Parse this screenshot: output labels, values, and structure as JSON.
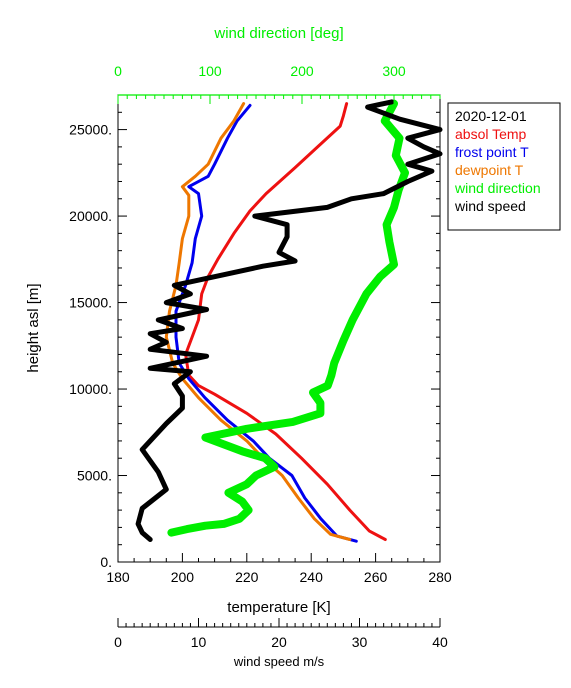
{
  "chart_data": {
    "type": "line",
    "title": "",
    "date_label": "2020-12-01",
    "y_axis": {
      "label": "height asl [m]",
      "range": [
        0,
        27000
      ],
      "ticks": [
        "0.",
        "5000.",
        "10000.",
        "15000.",
        "20000.",
        "25000."
      ],
      "tick_values": [
        0,
        5000,
        10000,
        15000,
        20000,
        25000
      ],
      "minor_step": 1000
    },
    "x_axis_temperature": {
      "label": "temperature [K]",
      "range": [
        180,
        280
      ],
      "ticks": [
        "180",
        "200",
        "220",
        "240",
        "260",
        "280"
      ],
      "tick_values": [
        180,
        200,
        220,
        240,
        260,
        280
      ],
      "minor_step": 5
    },
    "x_axis_wind_direction": {
      "label": "wind direction [deg]",
      "range": [
        0,
        350
      ],
      "ticks": [
        "0",
        "100",
        "200",
        "300"
      ],
      "tick_values": [
        0,
        100,
        200,
        300
      ],
      "minor_step": 10,
      "color": "#00ee00"
    },
    "x_axis_wind_speed": {
      "label": "wind speed  m/s",
      "range": [
        0,
        40
      ],
      "ticks": [
        "0",
        "10",
        "20",
        "30",
        "40"
      ],
      "tick_values": [
        0,
        10,
        20,
        30,
        40
      ],
      "minor_step": 1
    },
    "legend_position": "outside-right-top",
    "series": [
      {
        "name": "absol Temp",
        "axis": "temperature",
        "color": "#ee1111",
        "points": [
          [
            263,
            1300
          ],
          [
            258,
            1800
          ],
          [
            252,
            3000
          ],
          [
            245,
            4500
          ],
          [
            237,
            6000
          ],
          [
            229,
            7400
          ],
          [
            220,
            8600
          ],
          [
            210,
            9700
          ],
          [
            205,
            10200
          ],
          [
            202,
            10800
          ],
          [
            201,
            12000
          ],
          [
            203,
            13000
          ],
          [
            205,
            14000
          ],
          [
            206,
            15500
          ],
          [
            208,
            16500
          ],
          [
            211,
            17500
          ],
          [
            216,
            19000
          ],
          [
            221,
            20300
          ],
          [
            226,
            21300
          ],
          [
            235,
            22800
          ],
          [
            242,
            24000
          ],
          [
            249,
            25200
          ],
          [
            250,
            25800
          ],
          [
            251,
            26500
          ]
        ]
      },
      {
        "name": "frost point T",
        "axis": "temperature",
        "color": "#0000ee",
        "points": [
          [
            254,
            1200
          ],
          [
            248,
            1500
          ],
          [
            243,
            2500
          ],
          [
            238,
            3700
          ],
          [
            234,
            5000
          ],
          [
            227,
            6000
          ],
          [
            222,
            7000
          ],
          [
            214,
            8200
          ],
          [
            207,
            9500
          ],
          [
            202,
            10600
          ],
          [
            199,
            11500
          ],
          [
            198,
            13000
          ],
          [
            198,
            14500
          ],
          [
            201,
            16000
          ],
          [
            203,
            17300
          ],
          [
            204,
            18700
          ],
          [
            206,
            20000
          ],
          [
            205,
            21300
          ],
          [
            202,
            21700
          ],
          [
            208,
            22300
          ],
          [
            210,
            23000
          ],
          [
            214,
            24500
          ],
          [
            217,
            25500
          ],
          [
            221,
            26400
          ]
        ]
      },
      {
        "name": "dewpoint T",
        "axis": "temperature",
        "color": "#ee7700",
        "points": [
          [
            252,
            1300
          ],
          [
            246,
            1600
          ],
          [
            241,
            2500
          ],
          [
            236,
            3700
          ],
          [
            231,
            5000
          ],
          [
            225,
            6000
          ],
          [
            220,
            7000
          ],
          [
            212,
            8200
          ],
          [
            205,
            9500
          ],
          [
            200,
            10600
          ],
          [
            197,
            11500
          ],
          [
            195,
            13000
          ],
          [
            196,
            14500
          ],
          [
            198,
            16000
          ],
          [
            199,
            17300
          ],
          [
            200,
            18700
          ],
          [
            202,
            20000
          ],
          [
            202,
            21200
          ],
          [
            200,
            21700
          ],
          [
            204,
            22300
          ],
          [
            208,
            23000
          ],
          [
            212,
            24500
          ],
          [
            216,
            25500
          ],
          [
            219,
            26500
          ]
        ]
      },
      {
        "name": "wind direction",
        "axis": "wind_direction",
        "color": "#00ee00",
        "points": [
          [
            58,
            1700
          ],
          [
            75,
            1900
          ],
          [
            95,
            2100
          ],
          [
            115,
            2200
          ],
          [
            132,
            2500
          ],
          [
            142,
            3000
          ],
          [
            135,
            3500
          ],
          [
            120,
            4000
          ],
          [
            140,
            4500
          ],
          [
            150,
            5000
          ],
          [
            170,
            5500
          ],
          [
            160,
            6000
          ],
          [
            135,
            6400
          ],
          [
            115,
            6800
          ],
          [
            95,
            7200
          ],
          [
            140,
            7700
          ],
          [
            190,
            8100
          ],
          [
            220,
            8600
          ],
          [
            220,
            9200
          ],
          [
            212,
            9800
          ],
          [
            228,
            10200
          ],
          [
            232,
            10800
          ],
          [
            235,
            11500
          ],
          [
            245,
            12800
          ],
          [
            255,
            14000
          ],
          [
            270,
            15500
          ],
          [
            285,
            16500
          ],
          [
            300,
            17200
          ],
          [
            295,
            18500
          ],
          [
            292,
            19500
          ],
          [
            300,
            20500
          ],
          [
            305,
            21500
          ],
          [
            312,
            22500
          ],
          [
            302,
            23500
          ],
          [
            306,
            24500
          ],
          [
            290,
            25500
          ],
          [
            300,
            26500
          ]
        ]
      },
      {
        "name": "wind speed",
        "axis": "wind_speed",
        "color": "#000000",
        "points": [
          [
            4,
            1300
          ],
          [
            3,
            1700
          ],
          [
            2.5,
            2200
          ],
          [
            3,
            3100
          ],
          [
            6,
            4200
          ],
          [
            5,
            5200
          ],
          [
            3,
            6500
          ],
          [
            6,
            8000
          ],
          [
            8,
            8900
          ],
          [
            8,
            9600
          ],
          [
            7,
            10300
          ],
          [
            9,
            11000
          ],
          [
            4,
            11200
          ],
          [
            8,
            11600
          ],
          [
            11,
            11900
          ],
          [
            4,
            12300
          ],
          [
            6,
            12700
          ],
          [
            4,
            13200
          ],
          [
            8,
            13500
          ],
          [
            5,
            14000
          ],
          [
            11,
            14600
          ],
          [
            6,
            15000
          ],
          [
            9,
            15500
          ],
          [
            7,
            16000
          ],
          [
            13,
            16600
          ],
          [
            18,
            17100
          ],
          [
            22,
            17400
          ],
          [
            20,
            17900
          ],
          [
            21,
            18800
          ],
          [
            21,
            19500
          ],
          [
            17,
            20000
          ],
          [
            26,
            20500
          ],
          [
            29,
            21000
          ],
          [
            33,
            21300
          ],
          [
            36,
            22000
          ],
          [
            39,
            22600
          ],
          [
            36,
            23000
          ],
          [
            40,
            23600
          ],
          [
            38,
            24000
          ],
          [
            36,
            24500
          ],
          [
            40,
            25000
          ],
          [
            35,
            25600
          ],
          [
            31,
            26300
          ],
          [
            34,
            26600
          ]
        ]
      }
    ]
  }
}
